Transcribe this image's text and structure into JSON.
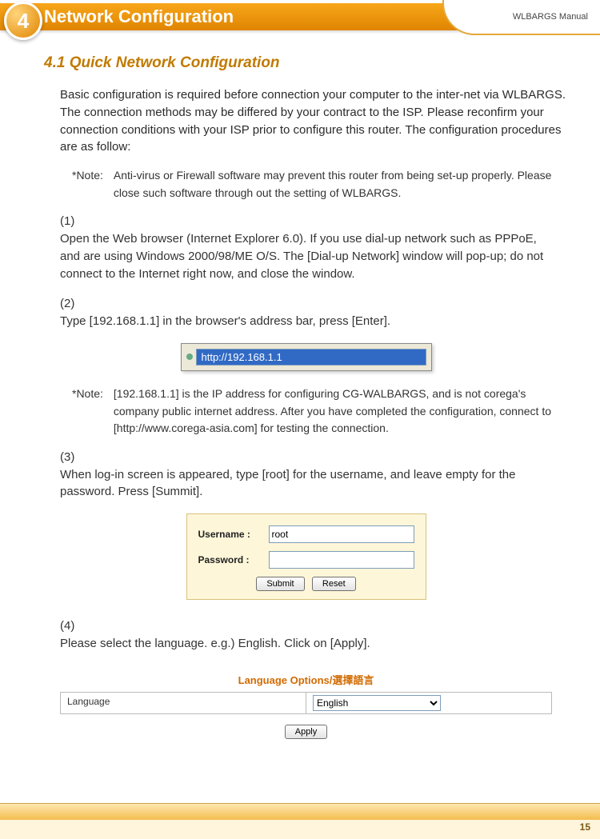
{
  "header": {
    "chapter_number": "4",
    "title": "Network Configuration",
    "manual_label": "WLBARGS Manual"
  },
  "section": {
    "heading": "4.1 Quick Network Configuration",
    "intro": "Basic configuration is required before connection your computer to the inter-net via WLBARGS. The connection methods may be differed by your contract to the ISP. Please reconfirm your connection conditions with your ISP prior to configure this router. The configuration procedures are as follow:",
    "note1_label": "*Note:",
    "note1": "Anti-virus or Firewall software may prevent this router from being set-up properly. Please close such software through out the setting of WLBARGS.",
    "step1_num": "(1)",
    "step1": "Open the Web browser (Internet Explorer 6.0). If you use dial-up network such as PPPoE, and are using Windows 2000/98/ME O/S. The [Dial-up Network] window will pop-up; do not connect to the Internet right now, and close the window.",
    "step2_num": "(2)",
    "step2": "Type [192.168.1.1] in the browser's address bar, press [Enter].",
    "addressbar_url": "http://192.168.1.1",
    "note2_label": "*Note:",
    "note2": "[192.168.1.1] is the IP address for configuring CG-WALBARGS, and is not corega's company public internet address. After you have completed the configuration, connect to [http://www.corega-asia.com] for testing the connection.",
    "step3_num": "(3)",
    "step3": "When log-in screen is appeared, type [root] for the username, and leave empty for the password. Press [Summit].",
    "login": {
      "username_label": "Username :",
      "username_value": "root",
      "password_label": "Password :",
      "password_value": "",
      "submit": "Submit",
      "reset": "Reset"
    },
    "step4_num": "(4)",
    "step4": "Please select the language. e.g.) English. Click on [Apply].",
    "language_box": {
      "title": "Language Options/選擇語言",
      "row_label": "Language",
      "selected": "English",
      "apply": "Apply"
    }
  },
  "footer": {
    "page_number": "15"
  },
  "colors": {
    "orange_header_top": "#f7a61a",
    "orange_header_bottom": "#e08500",
    "section_title": "#c17a00",
    "lang_title": "#d26a00",
    "login_bg": "#fdf6d9",
    "login_border": "#d8c27a",
    "addr_highlight": "#316ac5",
    "footer_grad_top": "#ffe7b0",
    "footer_grad_bottom": "#f2bd4e"
  }
}
